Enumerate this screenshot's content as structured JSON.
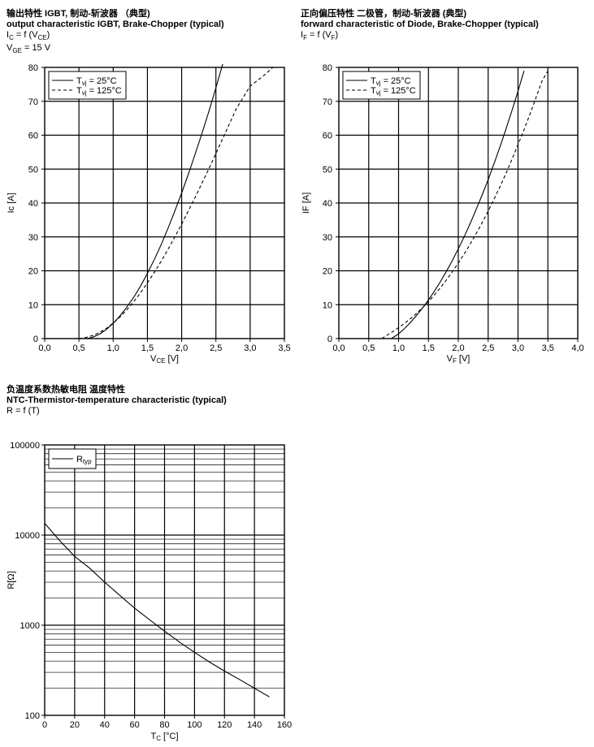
{
  "colors": {
    "background": "#ffffff",
    "ink": "#000000",
    "grid": "#000000"
  },
  "charts": [
    {
      "title_cn": "输出特性 IGBT, 制动-斩波器 （典型)",
      "title_en": "output characteristic IGBT, Brake-Chopper (typical)",
      "rel_main": "I",
      "rel_main_sub": "C",
      "rel_rest": " = f (V",
      "rel_rest_sub": "CE",
      "rel_end": ")",
      "cond_main": "V",
      "cond_sub": "GE",
      "cond_rest": " = 15 V",
      "xlabel": "V",
      "xlabel_sub": "CE",
      "xlabel_unit": "  [V]",
      "ylabel": "Ic [A]",
      "legend": [
        {
          "main": "T",
          "sub": "vj",
          "rest": " = 25°C",
          "style": "solid"
        },
        {
          "main": "T",
          "sub": "vj",
          "rest": " = 125°C",
          "style": "dashed"
        }
      ]
    },
    {
      "title_cn": "正向偏压特性  二极管，制动-斩波器 (典型)",
      "title_en": "forward characteristic of  Diode, Brake-Chopper (typical)",
      "rel_main": "I",
      "rel_main_sub": "F",
      "rel_rest": " = f (V",
      "rel_rest_sub": "F",
      "rel_end": ")",
      "xlabel": "V",
      "xlabel_sub": "F",
      "xlabel_unit": " [V]",
      "ylabel": "IF [A]",
      "legend": [
        {
          "main": "T",
          "sub": "vj",
          "rest": " = 25°C",
          "style": "solid"
        },
        {
          "main": "T",
          "sub": "vj",
          "rest": " = 125°C",
          "style": "dashed"
        }
      ]
    },
    {
      "title_cn": "负温度系数热敏电阻 温度特性",
      "title_en": "NTC-Thermistor-temperature characteristic (typical)",
      "rel_plain": "R = f (T)",
      "xlabel": "T",
      "xlabel_sub": "C",
      "xlabel_unit": " [°C]",
      "ylabel": "R[Ω]",
      "legend": [
        {
          "main": "R",
          "sub": "typ",
          "rest": "",
          "style": "solid"
        }
      ]
    }
  ],
  "chart_data": [
    {
      "type": "line",
      "xlim": [
        0,
        3.5
      ],
      "ylim": [
        0,
        80
      ],
      "xticks": [
        "0,0",
        "0,5",
        "1,0",
        "1,5",
        "2,0",
        "2,5",
        "3,0",
        "3,5"
      ],
      "yticks": [
        "0",
        "10",
        "20",
        "30",
        "40",
        "50",
        "60",
        "70",
        "80"
      ],
      "grid": true,
      "legend_position": "top-left",
      "series": [
        {
          "name": "Tvj = 25°C",
          "style": "solid",
          "x": [
            0.62,
            0.7,
            0.8,
            0.9,
            1.0,
            1.1,
            1.2,
            1.3,
            1.4,
            1.5,
            1.6,
            1.7,
            1.8,
            1.9,
            2.0,
            2.1,
            2.2,
            2.3,
            2.4,
            2.5,
            2.6
          ],
          "y": [
            0,
            0.4,
            1.3,
            2.7,
            4.5,
            6.7,
            9.3,
            12.2,
            15.5,
            19.2,
            23.3,
            27.7,
            32.5,
            37.6,
            43.0,
            48.6,
            54.6,
            60.8,
            67.2,
            74.0,
            81.0
          ]
        },
        {
          "name": "Tvj = 125°C",
          "style": "dashed",
          "x": [
            0.5,
            0.6,
            0.7,
            0.8,
            0.9,
            1.0,
            1.1,
            1.2,
            1.3,
            1.4,
            1.5,
            1.6,
            1.7,
            1.8,
            1.9,
            2.0,
            2.2,
            2.4,
            2.6,
            2.8,
            3.0,
            3.2,
            3.33
          ],
          "y": [
            0,
            0.3,
            0.9,
            1.8,
            3.0,
            4.6,
            6.4,
            8.5,
            10.9,
            13.5,
            16.4,
            19.5,
            22.8,
            26.3,
            30.0,
            33.8,
            41.8,
            50.2,
            59.0,
            67.9,
            74.5,
            77.6,
            80.0
          ]
        }
      ]
    },
    {
      "type": "line",
      "xlim": [
        0,
        4.0
      ],
      "ylim": [
        0,
        80
      ],
      "xticks": [
        "0,0",
        "0,5",
        "1,0",
        "1,5",
        "2,0",
        "2,5",
        "3,0",
        "3,5",
        "4,0"
      ],
      "yticks": [
        "0",
        "10",
        "20",
        "30",
        "40",
        "50",
        "60",
        "70",
        "80"
      ],
      "grid": true,
      "legend_position": "top-left",
      "series": [
        {
          "name": "Tvj = 25°C",
          "style": "solid",
          "x": [
            0.88,
            1.0,
            1.1,
            1.2,
            1.3,
            1.4,
            1.5,
            1.6,
            1.7,
            1.8,
            1.9,
            2.0,
            2.1,
            2.2,
            2.3,
            2.4,
            2.5,
            2.6,
            2.7,
            2.8,
            2.9,
            3.0,
            3.1
          ],
          "y": [
            0,
            1.4,
            3.0,
            4.8,
            6.8,
            9.0,
            11.4,
            14.0,
            16.8,
            19.8,
            23.0,
            26.5,
            30.1,
            34.0,
            38.1,
            42.4,
            46.9,
            51.7,
            56.7,
            61.9,
            67.3,
            73.0,
            79.0
          ]
        },
        {
          "name": "Tvj = 125°C",
          "style": "dashed",
          "x": [
            0.72,
            0.8,
            0.9,
            1.0,
            1.1,
            1.2,
            1.3,
            1.4,
            1.5,
            1.6,
            1.7,
            1.8,
            1.9,
            2.0,
            2.1,
            2.2,
            2.3,
            2.4,
            2.5,
            2.6,
            2.7,
            2.8,
            2.9,
            3.0,
            3.1,
            3.2,
            3.3,
            3.4,
            3.5
          ],
          "y": [
            0,
            0.9,
            2.0,
            3.2,
            4.5,
            5.9,
            7.4,
            9.1,
            10.9,
            12.9,
            15.0,
            17.3,
            19.7,
            22.3,
            25.0,
            27.9,
            31.0,
            34.2,
            37.6,
            41.2,
            44.9,
            48.8,
            52.9,
            57.2,
            61.6,
            66.2,
            71.0,
            75.9,
            79.0
          ]
        }
      ]
    },
    {
      "type": "line",
      "yscale": "log",
      "xlim": [
        0,
        160
      ],
      "ylim": [
        100,
        100000
      ],
      "xticks": [
        "0",
        "20",
        "40",
        "60",
        "80",
        "100",
        "120",
        "140",
        "160"
      ],
      "yticks": [
        {
          "label": "100",
          "value": 100
        },
        {
          "label": "1000",
          "value": 1000
        },
        {
          "label": "10000",
          "value": 10000
        },
        {
          "label": "100000",
          "value": 100000
        }
      ],
      "grid": true,
      "legend_position": "top-left",
      "series": [
        {
          "name": "Rtyp",
          "style": "solid",
          "x": [
            0,
            10,
            20,
            25,
            30,
            40,
            50,
            60,
            70,
            80,
            90,
            100,
            110,
            120,
            130,
            140,
            150
          ],
          "y": [
            13500,
            8700,
            5800,
            5000,
            4300,
            3000,
            2150,
            1550,
            1150,
            860,
            650,
            500,
            390,
            310,
            250,
            200,
            160
          ]
        }
      ]
    }
  ]
}
